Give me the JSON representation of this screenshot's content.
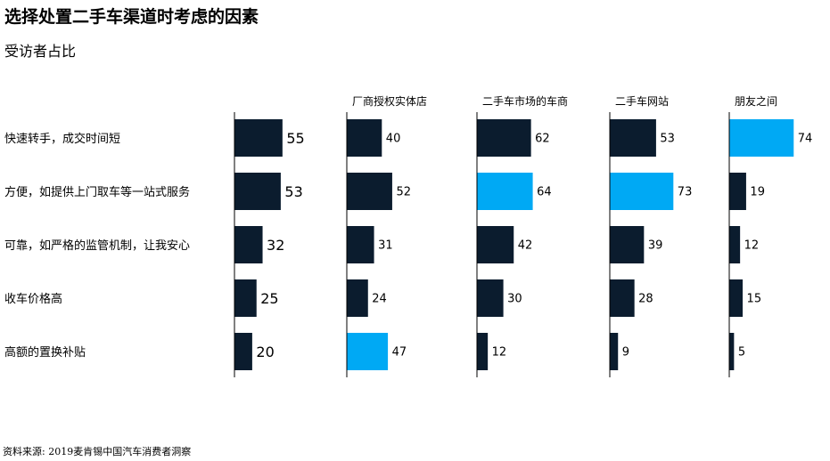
{
  "title": "选择处置二手车渠道时考虑的因素",
  "subtitle": "受访者占比",
  "source": "资料来源: 2019麦肯锡中国汽车消费者洞察",
  "colors": {
    "dark": "#0b1c2e",
    "highlight": "#00a9f4",
    "axis": "#000000"
  },
  "chart_data": {
    "type": "bar",
    "orientation": "horizontal",
    "title": "选择处置二手车渠道时考虑的因素",
    "subtitle": "受访者占比",
    "categories": [
      "快速转手，成交时间短",
      "方便，如提供上门取车等一站式服务",
      "可靠，如严格的监管机制，让我安心",
      "收车价格高",
      "高额的置换补贴"
    ],
    "series": [
      {
        "name": "",
        "values": [
          55,
          53,
          32,
          25,
          20
        ],
        "highlight": [
          false,
          false,
          false,
          false,
          false
        ]
      },
      {
        "name": "厂商授权实体店",
        "values": [
          40,
          52,
          31,
          24,
          47
        ],
        "highlight": [
          false,
          false,
          false,
          false,
          true
        ]
      },
      {
        "name": "二手车市场的车商",
        "values": [
          62,
          64,
          42,
          30,
          12
        ],
        "highlight": [
          false,
          true,
          false,
          false,
          false
        ]
      },
      {
        "name": "二手车网站",
        "values": [
          53,
          73,
          39,
          28,
          9
        ],
        "highlight": [
          false,
          true,
          false,
          false,
          false
        ]
      },
      {
        "name": "朋友之间",
        "values": [
          74,
          19,
          12,
          15,
          5
        ],
        "highlight": [
          true,
          false,
          false,
          false,
          false
        ]
      }
    ],
    "xlim": [
      0,
      100
    ],
    "grid": false,
    "legend": "none"
  }
}
